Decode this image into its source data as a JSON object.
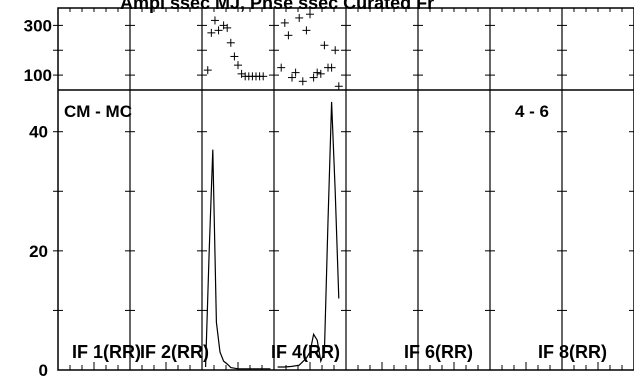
{
  "header_fragment": "Ampl ssec MJ, Phse ssec Curated Fr",
  "chart_data": {
    "type": "line",
    "baseline_label": "CM - MC",
    "channel_label": "4 - 6",
    "panel_labels": [
      "IF 1(RR)",
      "IF 2(RR)",
      "IF 4(RR)",
      "IF 6(RR)",
      "IF 8(RR)"
    ],
    "top_axis": {
      "ticks": [
        100,
        300
      ],
      "ylim": [
        40,
        370
      ]
    },
    "bottom_axis": {
      "ticks": [
        0,
        20,
        40
      ],
      "ylim": [
        0,
        47
      ]
    },
    "phase_series": [
      {
        "panel": 3,
        "x": [
          0.08,
          0.13,
          0.18,
          0.23,
          0.3,
          0.35,
          0.4,
          0.45,
          0.5,
          0.55,
          0.6,
          0.65,
          0.7,
          0.75,
          0.8,
          0.85
        ],
        "y": [
          120,
          270,
          320,
          280,
          300,
          290,
          230,
          175,
          140,
          105,
          95,
          95,
          95,
          95,
          95,
          95
        ]
      },
      {
        "panel": 4,
        "x": [
          0.1,
          0.15,
          0.2,
          0.25,
          0.3,
          0.35,
          0.4,
          0.45,
          0.5,
          0.55,
          0.6,
          0.65,
          0.7,
          0.75,
          0.8,
          0.85,
          0.9
        ],
        "y": [
          130,
          310,
          260,
          90,
          110,
          330,
          75,
          280,
          345,
          90,
          110,
          105,
          220,
          130,
          130,
          200,
          55
        ]
      }
    ],
    "amplitude_series": [
      {
        "panel": 3,
        "x": [
          0.05,
          0.1,
          0.15,
          0.2,
          0.25,
          0.3,
          0.35,
          0.4,
          0.45,
          0.5,
          0.55,
          0.6,
          0.65,
          0.7,
          0.75,
          0.8,
          0.85,
          0.9,
          0.95
        ],
        "y": [
          0.5,
          20,
          37,
          8,
          3,
          1.5,
          1,
          0.4,
          0.3,
          0.2,
          0.2,
          0.2,
          0.2,
          0.2,
          0.2,
          0.2,
          0.2,
          0.2,
          0.2
        ]
      },
      {
        "panel": 4,
        "x": [
          0.05,
          0.15,
          0.25,
          0.35,
          0.45,
          0.5,
          0.55,
          0.6,
          0.65,
          0.7,
          0.75,
          0.8,
          0.85,
          0.9
        ],
        "y": [
          0.5,
          0.5,
          0.6,
          0.8,
          2,
          3,
          6,
          5,
          1.5,
          3,
          25,
          45,
          30,
          12
        ]
      }
    ]
  }
}
